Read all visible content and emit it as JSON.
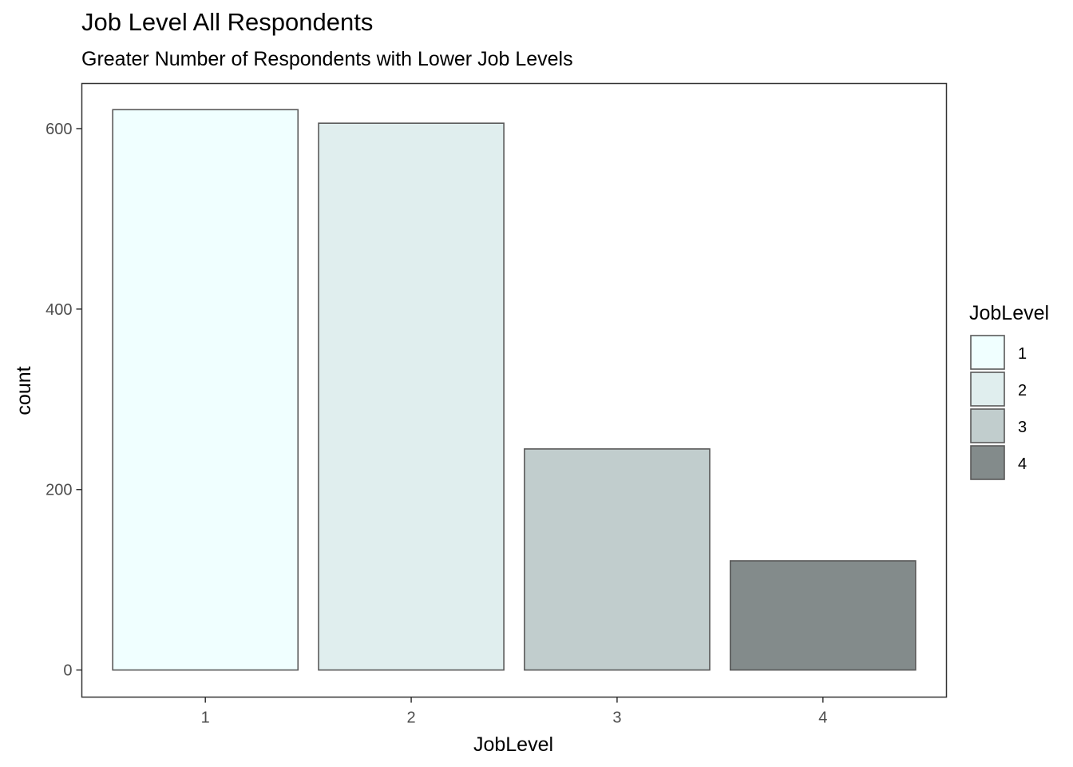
{
  "chart_data": {
    "type": "bar",
    "title": "Job Level All Respondents",
    "subtitle": "Greater Number of Respondents with Lower Job Levels",
    "xlabel": "JobLevel",
    "ylabel": "count",
    "categories": [
      "1",
      "2",
      "3",
      "4"
    ],
    "values": [
      621,
      606,
      245,
      121
    ],
    "colors": [
      "#F0FFFF",
      "#E0EEEE",
      "#C1CDCD",
      "#838B8B"
    ],
    "bar_outline_color": "#595959",
    "ylim": [
      -30,
      650
    ],
    "yticks": [
      0,
      200,
      400,
      600
    ],
    "ytick_labels": [
      "0",
      "200",
      "400",
      "600"
    ],
    "grid": false,
    "legend": {
      "title": "JobLevel",
      "position": "right",
      "items": [
        "1",
        "2",
        "3",
        "4"
      ]
    }
  }
}
